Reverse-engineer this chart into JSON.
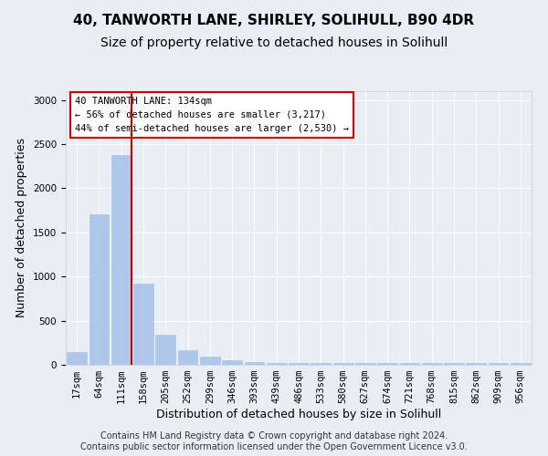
{
  "title1": "40, TANWORTH LANE, SHIRLEY, SOLIHULL, B90 4DR",
  "title2": "Size of property relative to detached houses in Solihull",
  "xlabel": "Distribution of detached houses by size in Solihull",
  "ylabel": "Number of detached properties",
  "bar_values": [
    140,
    1700,
    2380,
    920,
    340,
    165,
    90,
    55,
    35,
    25,
    20,
    20,
    20,
    20,
    20,
    20,
    20,
    20,
    20,
    20,
    20
  ],
  "bar_labels": [
    "17sqm",
    "64sqm",
    "111sqm",
    "158sqm",
    "205sqm",
    "252sqm",
    "299sqm",
    "346sqm",
    "393sqm",
    "439sqm",
    "486sqm",
    "533sqm",
    "580sqm",
    "627sqm",
    "674sqm",
    "721sqm",
    "768sqm",
    "815sqm",
    "862sqm",
    "909sqm",
    "956sqm"
  ],
  "bar_color": "#aec6e8",
  "ylim_max": 3100,
  "yticks": [
    0,
    500,
    1000,
    1500,
    2000,
    2500,
    3000
  ],
  "vline_x_idx": 2,
  "vline_color": "#cc0000",
  "annotation_line1": "40 TANWORTH LANE: 134sqm",
  "annotation_line2": "← 56% of detached houses are smaller (3,217)",
  "annotation_line3": "44% of semi-detached houses are larger (2,530) →",
  "annotation_box_edge_color": "#cc0000",
  "bg_color": "#e8eef4",
  "footer_line1": "Contains HM Land Registry data © Crown copyright and database right 2024.",
  "footer_line2": "Contains public sector information licensed under the Open Government Licence v3.0.",
  "title1_fontsize": 11,
  "title2_fontsize": 10,
  "xlabel_fontsize": 9,
  "ylabel_fontsize": 9,
  "tick_fontsize": 7.5,
  "footer_fontsize": 7
}
